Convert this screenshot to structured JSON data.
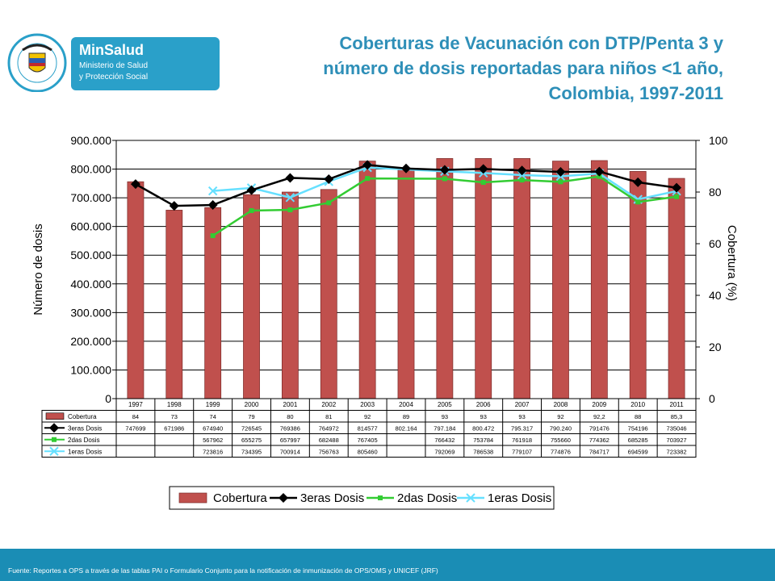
{
  "logo": {
    "seal_text": "REPÚBLICA DE COLOMBIA",
    "brand": "MinSalud",
    "line1": "Ministerio de Salud",
    "line2": "y Protección Social"
  },
  "title_lines": [
    "Coberturas de Vacunación con DTP/Penta 3 y",
    "número de dosis reportadas para niños <1 año,",
    "Colombia, 1997-2011"
  ],
  "footer": "Fuente: Reportes a OPS a través de las tablas PAI o Formulario Conjunto para la notificación de inmunización de OPS/OMS y UNICEF (JRF)",
  "colors": {
    "bar": "#c0504d",
    "dosis3": "#000000",
    "dosis2": "#33cc33",
    "dosis1": "#66e0ff",
    "title": "#2e8fb8",
    "footer": "#1a8db5"
  },
  "chart_data": {
    "type": "bar",
    "categories": [
      "1997",
      "1998",
      "1999",
      "2000",
      "2001",
      "2002",
      "2003",
      "2004",
      "2005",
      "2006",
      "2007",
      "2008",
      "2009",
      "2010",
      "2011"
    ],
    "ylabel": "Número de dosis",
    "y2label": "Cobertura (%)",
    "ylim": [
      0,
      900000
    ],
    "y2lim": [
      0,
      100
    ],
    "ytick_labels": [
      "0",
      "100.000",
      "200.000",
      "300.000",
      "400.000",
      "500.000",
      "600.000",
      "700.000",
      "800.000",
      "900.000"
    ],
    "y2tick_labels": [
      "0",
      "20",
      "40",
      "60",
      "80",
      "100"
    ],
    "grid": true,
    "legend_position": "bottom",
    "series": [
      {
        "name": "Cobertura",
        "kind": "bar",
        "axis": "right",
        "values": [
          84,
          73,
          74,
          79,
          80,
          81,
          92,
          89,
          93,
          93,
          93,
          92,
          92.2,
          88,
          85.3
        ],
        "labels": [
          "84",
          "73",
          "74",
          "79",
          "80",
          "81",
          "92",
          "89",
          "93",
          "93",
          "93",
          "92",
          "92,2",
          "88",
          "85,3"
        ]
      },
      {
        "name": "3eras Dosis",
        "kind": "line",
        "marker": "diamond",
        "axis": "left",
        "values": [
          747699,
          671986,
          674940,
          726545,
          769386,
          764972,
          814577,
          802164,
          797184,
          800472,
          795317,
          790240,
          791476,
          754196,
          735046
        ],
        "labels": [
          "747699",
          "671986",
          "674940",
          "726545",
          "769386",
          "764972",
          "814577",
          "802.164",
          "797.184",
          "800.472",
          "795.317",
          "790.240",
          "791476",
          "754196",
          "735046"
        ]
      },
      {
        "name": "2das Dosis",
        "kind": "line",
        "marker": "square",
        "axis": "left",
        "values": [
          null,
          null,
          567962,
          655275,
          657997,
          682488,
          767405,
          null,
          766432,
          753784,
          761918,
          755660,
          774362,
          685285,
          703927
        ],
        "labels": [
          "",
          "",
          "567962",
          "655275",
          "657997",
          "682488",
          "767405",
          "",
          "766432",
          "753784",
          "761918",
          "755660",
          "774362",
          "685285",
          "703927"
        ]
      },
      {
        "name": "1eras Dosis",
        "kind": "line",
        "marker": "x",
        "axis": "left",
        "values": [
          null,
          null,
          723816,
          734395,
          700914,
          756763,
          805460,
          null,
          792069,
          786538,
          779107,
          774876,
          784717,
          694599,
          723382
        ],
        "labels": [
          "",
          "",
          "723816",
          "734395",
          "700914",
          "756763",
          "805460",
          "",
          "792069",
          "786538",
          "779107",
          "774876",
          "784717",
          "694599",
          "723382"
        ]
      }
    ]
  }
}
